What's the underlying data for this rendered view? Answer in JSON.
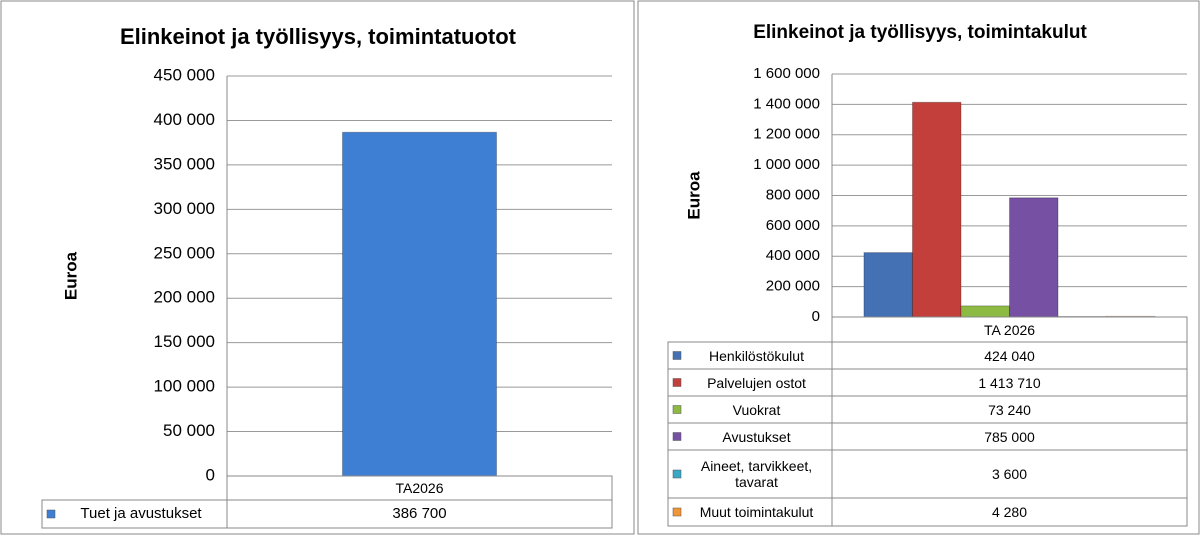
{
  "chart_data": [
    {
      "type": "bar",
      "title": "Elinkeinot ja työllisyys, toimintatuotot",
      "y_label": "Euroa",
      "categories": [
        "TA2026"
      ],
      "series": [
        {
          "name": "Tuet ja avustukset",
          "color": "#3e7fd3",
          "values": [
            386700
          ],
          "value_labels": [
            "386 700"
          ]
        }
      ],
      "ylim": [
        0,
        450000
      ],
      "yticks": [
        0,
        {
          "value": 50000,
          "label": "50 000"
        },
        {
          "value": 100000,
          "label": "100 000"
        },
        {
          "value": 150000,
          "label": "150 000"
        },
        {
          "value": 200000,
          "label": "200 000"
        },
        {
          "value": 250000,
          "label": "250 000"
        },
        {
          "value": 300000,
          "label": "300 000"
        },
        {
          "value": 350000,
          "label": "350 000"
        },
        {
          "value": 400000,
          "label": "400 000"
        },
        {
          "value": 450000,
          "label": "450 000"
        }
      ],
      "grid": true
    },
    {
      "type": "bar",
      "title": "Elinkeinot ja työllisyys, toimintakulut",
      "y_label": "Euroa",
      "categories": [
        "TA 2026"
      ],
      "series": [
        {
          "name": "Henkilöstökulut",
          "color": "#4470b4",
          "values": [
            424040
          ],
          "value_labels": [
            "424 040"
          ]
        },
        {
          "name": "Palvelujen ostot",
          "color": "#c23f3b",
          "values": [
            1413710
          ],
          "value_labels": [
            "1 413 710"
          ]
        },
        {
          "name": "Vuokrat",
          "color": "#8dba42",
          "values": [
            73240
          ],
          "value_labels": [
            "73 240"
          ]
        },
        {
          "name": "Avustukset",
          "color": "#7650a2",
          "values": [
            785000
          ],
          "value_labels": [
            "785 000"
          ]
        },
        {
          "name": "Aineet, tarvikkeet, tavarat",
          "color": "#3aa7c6",
          "values": [
            3600
          ],
          "value_labels": [
            "3 600"
          ]
        },
        {
          "name": "Muut toimintakulut",
          "color": "#f39438",
          "values": [
            4280
          ],
          "value_labels": [
            "4 280"
          ]
        }
      ],
      "ylim": [
        0,
        1600000
      ],
      "yticks": [
        0,
        {
          "value": 200000,
          "label": "200 000"
        },
        {
          "value": 400000,
          "label": "400 000"
        },
        {
          "value": 600000,
          "label": "600 000"
        },
        {
          "value": 800000,
          "label": "800 000"
        },
        {
          "value": 1000000,
          "label": "1 000 000"
        },
        {
          "value": 1200000,
          "label": "1 200 000"
        },
        {
          "value": 1400000,
          "label": "1 400 000"
        },
        {
          "value": 1600000,
          "label": "1 600 000"
        }
      ],
      "grid": true
    }
  ]
}
